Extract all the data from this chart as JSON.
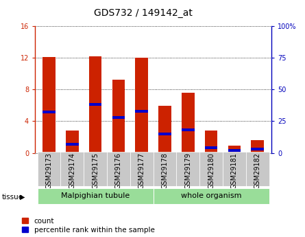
{
  "title": "GDS732 / 149142_at",
  "samples": [
    "GSM29173",
    "GSM29174",
    "GSM29175",
    "GSM29176",
    "GSM29177",
    "GSM29178",
    "GSM29179",
    "GSM29180",
    "GSM29181",
    "GSM29182"
  ],
  "count_values": [
    12.1,
    2.8,
    12.2,
    9.2,
    12.05,
    5.9,
    7.6,
    2.8,
    0.9,
    1.6
  ],
  "percentile_pct": [
    32,
    7,
    38,
    28,
    33,
    15,
    18,
    4,
    2,
    3
  ],
  "tissue_groups": [
    {
      "label": "Malpighian tubule",
      "start": 0,
      "end": 5,
      "color": "#99dd99"
    },
    {
      "label": "whole organism",
      "start": 5,
      "end": 10,
      "color": "#99dd99"
    }
  ],
  "left_ylim": [
    0,
    16
  ],
  "right_ylim": [
    0,
    100
  ],
  "left_yticks": [
    0,
    4,
    8,
    12,
    16
  ],
  "right_yticks": [
    0,
    25,
    50,
    75,
    100
  ],
  "right_yticklabels": [
    "0",
    "25",
    "50",
    "75",
    "100%"
  ],
  "bar_color": "#cc2200",
  "percentile_color": "#0000cc",
  "grid_color": "#000000",
  "title_fontsize": 10,
  "tick_fontsize": 7,
  "tissue_fontsize": 8,
  "legend_fontsize": 7.5,
  "bar_width": 0.55,
  "left_axis_color": "#cc2200",
  "right_axis_color": "#0000bb",
  "background_xtick": "#c8c8c8"
}
